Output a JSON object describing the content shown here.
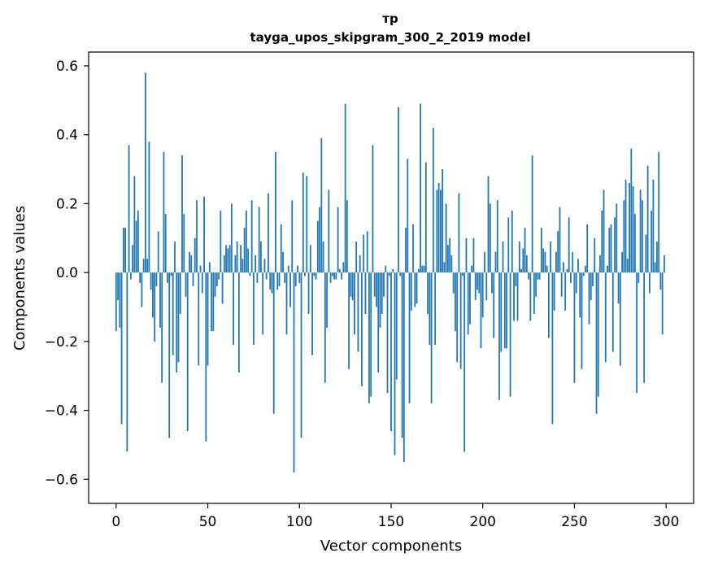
{
  "chart_data": {
    "type": "bar",
    "title_line1": "тр",
    "title_line2": "tayga_upos_skipgram_300_2_2019 model",
    "xlabel": "Vector components",
    "ylabel": "Components values",
    "xlim": [
      -15,
      315
    ],
    "ylim": [
      -0.67,
      0.64
    ],
    "x_ticks": [
      {
        "value": 0,
        "label": "0"
      },
      {
        "value": 50,
        "label": "50"
      },
      {
        "value": 100,
        "label": "100"
      },
      {
        "value": 150,
        "label": "150"
      },
      {
        "value": 200,
        "label": "200"
      },
      {
        "value": 250,
        "label": "250"
      },
      {
        "value": 300,
        "label": "300"
      }
    ],
    "y_ticks": [
      {
        "value": -0.6,
        "label": "−0.6"
      },
      {
        "value": -0.4,
        "label": "−0.4"
      },
      {
        "value": -0.2,
        "label": "−0.2"
      },
      {
        "value": 0.0,
        "label": "0.0"
      },
      {
        "value": 0.2,
        "label": "0.2"
      },
      {
        "value": 0.4,
        "label": "0.4"
      },
      {
        "value": 0.6,
        "label": "0.6"
      }
    ],
    "bar_color": "#1f77b4",
    "grid": false,
    "values": [
      -0.17,
      -0.08,
      -0.16,
      -0.44,
      0.13,
      0.13,
      -0.52,
      0.37,
      -0.02,
      0.08,
      0.28,
      0.15,
      0.18,
      -0.03,
      -0.1,
      0.04,
      0.58,
      0.04,
      0.38,
      -0.05,
      -0.13,
      -0.2,
      -0.04,
      0.12,
      -0.16,
      -0.32,
      0.35,
      0.17,
      -0.03,
      -0.48,
      -0.01,
      -0.24,
      0.09,
      -0.29,
      -0.26,
      -0.12,
      0.34,
      0.17,
      -0.07,
      -0.46,
      0.06,
      0.05,
      -0.04,
      0.1,
      0.21,
      -0.27,
      0.02,
      -0.06,
      0.22,
      -0.49,
      -0.27,
      0.03,
      -0.17,
      -0.17,
      -0.07,
      -0.04,
      -0.02,
      0.18,
      -0.09,
      0.05,
      0.08,
      0.07,
      0.08,
      0.2,
      -0.21,
      0.05,
      0.09,
      -0.29,
      0.08,
      0.04,
      0.13,
      0.18,
      0.07,
      -0.01,
      0.21,
      -0.21,
      0.05,
      -0.03,
      0.19,
      0.09,
      -0.18,
      0.04,
      -0.02,
      0.23,
      -0.05,
      -0.06,
      -0.41,
      0.35,
      -0.05,
      -0.04,
      0.14,
      0.06,
      -0.03,
      -0.18,
      0.02,
      -0.1,
      0.21,
      -0.58,
      -0.04,
      0.02,
      -0.03,
      -0.48,
      0.29,
      -0.01,
      0.28,
      -0.12,
      0.08,
      -0.24,
      -0.01,
      -0.02,
      0.15,
      0.19,
      0.39,
      0.09,
      -0.32,
      -0.16,
      0.24,
      -0.03,
      -0.01,
      -0.02,
      -0.02,
      0.19,
      0.01,
      -0.02,
      0.03,
      0.49,
      0.21,
      -0.28,
      -0.07,
      -0.08,
      -0.18,
      0.09,
      -0.23,
      0.05,
      -0.33,
      0.11,
      -0.12,
      0.12,
      -0.38,
      -0.36,
      0.37,
      -0.07,
      -0.1,
      -0.29,
      -0.16,
      -0.12,
      -0.07,
      0.02,
      -0.35,
      -0.01,
      -0.46,
      0.01,
      -0.53,
      -0.31,
      0.48,
      -0.01,
      -0.48,
      -0.55,
      0.13,
      0.33,
      -0.38,
      -0.11,
      0.14,
      -0.1,
      -0.09,
      0.01,
      0.49,
      0.02,
      0.02,
      0.32,
      -0.12,
      -0.21,
      -0.38,
      0.42,
      -0.21,
      0.24,
      0.26,
      0.24,
      0.3,
      0.03,
      0.2,
      0.08,
      0.1,
      0.05,
      -0.06,
      -0.17,
      -0.26,
      0.23,
      -0.28,
      -0.01,
      -0.52,
      0.1,
      -0.18,
      -0.15,
      0.02,
      0.1,
      -0.08,
      -0.05,
      -0.06,
      -0.22,
      -0.13,
      0.06,
      -0.08,
      0.28,
      0.2,
      -0.06,
      -0.19,
      0.06,
      0.21,
      -0.37,
      -0.23,
      0.09,
      -0.22,
      -0.22,
      0.16,
      -0.36,
      0.18,
      -0.14,
      -0.04,
      -0.14,
      0.09,
      0.01,
      0.07,
      0.13,
      0.05,
      -0.02,
      -0.14,
      0.34,
      -0.12,
      -0.07,
      -0.02,
      -0.02,
      0.13,
      0.07,
      0.06,
      0.02,
      -0.19,
      0.09,
      -0.44,
      -0.11,
      0.06,
      0.12,
      0.19,
      -0.07,
      0.03,
      -0.11,
      0.01,
      0.16,
      -0.03,
      0.06,
      -0.32,
      -0.06,
      0.04,
      -0.13,
      -0.28,
      -0.01,
      0.02,
      0.14,
      -0.15,
      -0.08,
      -0.04,
      0.1,
      -0.41,
      -0.36,
      0.05,
      0.18,
      0.24,
      -0.26,
      0.02,
      0.13,
      0.14,
      -0.23,
      0.16,
      0.2,
      -0.09,
      -0.27,
      0.06,
      0.21,
      0.27,
      0.04,
      0.26,
      0.36,
      0.25,
      0.17,
      -0.35,
      -0.03,
      0.24,
      0.21,
      -0.32,
      0.11,
      0.31,
      -0.06,
      0.18,
      0.27,
      0.03,
      0.09,
      0.35,
      -0.05,
      -0.18,
      0.05
    ]
  }
}
